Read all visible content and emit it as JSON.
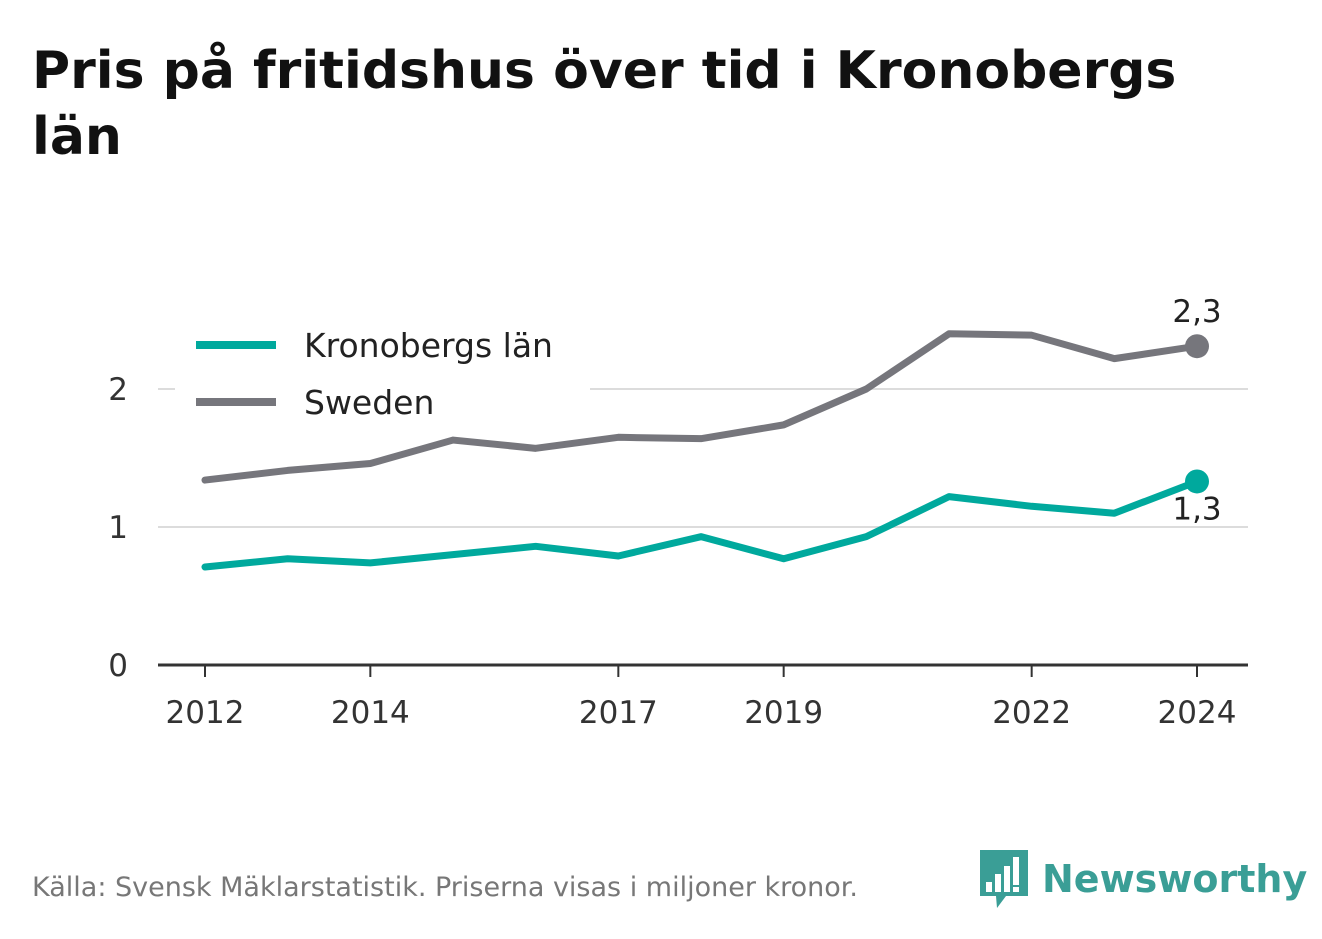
{
  "title": "Pris på fritidshus över tid i Kronobergs län",
  "footer": "Källa: Svensk Mäklarstatistik. Priserna visas i miljoner kronor.",
  "brand": "Newsworthy",
  "colors": {
    "kronoberg": "#00a99d",
    "sweden": "#76767c",
    "grid": "#dcdcdc",
    "axis": "#333333",
    "brand": "#3a9e96"
  },
  "chart_data": {
    "type": "line",
    "title": "Pris på fritidshus över tid i Kronobergs län",
    "x": [
      2012,
      2013,
      2014,
      2015,
      2016,
      2017,
      2018,
      2019,
      2020,
      2021,
      2022,
      2023,
      2024
    ],
    "xticks": [
      "2012",
      "2014",
      "2017",
      "2019",
      "2022",
      "2024"
    ],
    "yticks": [
      "0",
      "1",
      "2"
    ],
    "ylim": [
      0,
      2.5
    ],
    "grid": true,
    "legend_position": "top-left",
    "series": [
      {
        "name": "Kronobergs län",
        "values": [
          0.71,
          0.77,
          0.74,
          0.8,
          0.86,
          0.79,
          0.93,
          0.77,
          0.93,
          1.22,
          1.15,
          1.1,
          1.33
        ],
        "end_label": "1,3"
      },
      {
        "name": "Sweden",
        "values": [
          1.34,
          1.41,
          1.46,
          1.63,
          1.57,
          1.65,
          1.64,
          1.74,
          2.0,
          2.4,
          2.39,
          2.22,
          2.31
        ],
        "end_label": "2,3"
      }
    ]
  }
}
